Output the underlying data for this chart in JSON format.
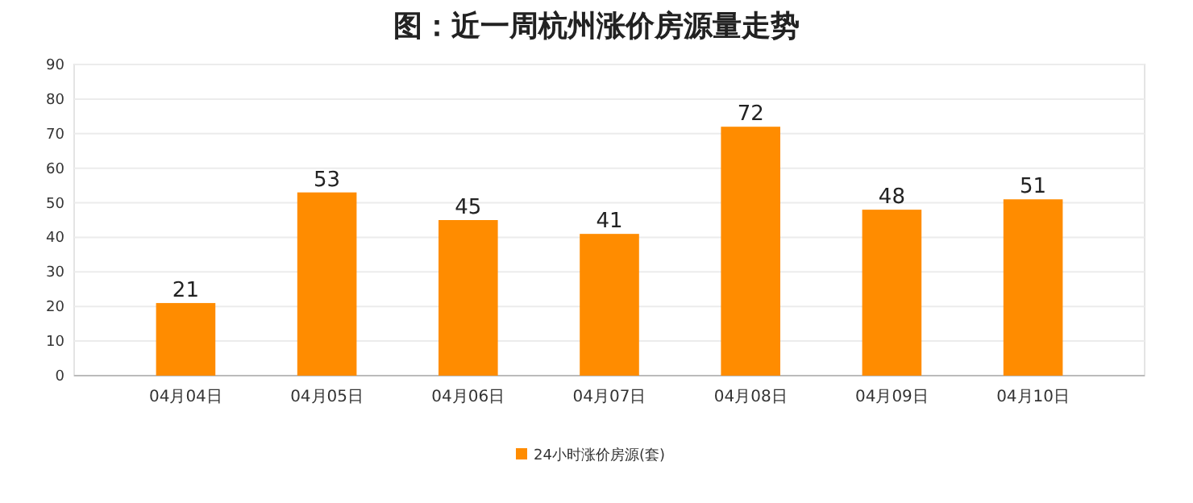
{
  "chart_data": {
    "type": "bar",
    "title": "图：近一周杭州涨价房源量走势",
    "categories": [
      "04月04日",
      "04月05日",
      "04月06日",
      "04月07日",
      "04月08日",
      "04月09日",
      "04月10日"
    ],
    "series": [
      {
        "name": "24小时涨价房源(套)",
        "color": "#ff8c00",
        "values": [
          21,
          53,
          45,
          41,
          72,
          48,
          51
        ]
      }
    ],
    "ylim": [
      0,
      90
    ],
    "yticks": [
      0,
      10,
      20,
      30,
      40,
      50,
      60,
      70,
      80,
      90
    ],
    "grid": "y",
    "legend": "bottom",
    "data_labels": true
  }
}
